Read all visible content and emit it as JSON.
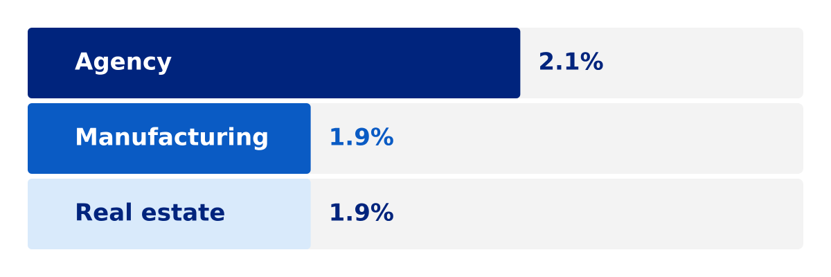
{
  "chart_data": {
    "type": "bar",
    "orientation": "horizontal",
    "categories": [
      "Agency",
      "Manufacturing",
      "Real estate"
    ],
    "values": [
      2.1,
      1.9,
      1.9
    ],
    "value_labels": [
      "2.1%",
      "1.9%",
      "1.9%"
    ],
    "colors": [
      "#00247d",
      "#0a5bc4",
      "#d9eafb"
    ],
    "label_colors": [
      "#ffffff",
      "#ffffff",
      "#00247d"
    ],
    "value_label_colors": [
      "#00247d",
      "#0a5bc4",
      "#00247d"
    ],
    "track_color": "#f3f3f3",
    "xlim": [
      1.63,
      2.37
    ]
  }
}
